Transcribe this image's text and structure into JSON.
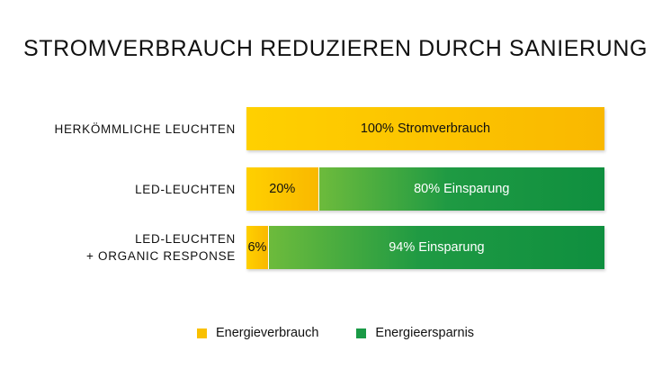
{
  "chart_data": {
    "type": "bar",
    "orientation": "horizontal",
    "stacked": true,
    "title": "STROMVERBRAUCH REDUZIEREN DURCH SANIERUNG",
    "categories": [
      [
        "HERKÖMMLICHE LEUCHTEN"
      ],
      [
        "LED-LEUCHTEN"
      ],
      [
        "LED-LEUCHTEN",
        "+ ORGANIC RESPONSE"
      ]
    ],
    "series": [
      {
        "name": "Energieverbrauch",
        "color": "#f9c000",
        "values": [
          100,
          20,
          6
        ],
        "labels": [
          "100% Stromverbrauch",
          "20%",
          "6%"
        ]
      },
      {
        "name": "Energieersparnis",
        "color": "#1a9a46",
        "values": [
          0,
          80,
          94
        ],
        "labels": [
          "",
          "80% Einsparung",
          "94% Einsparung"
        ]
      }
    ],
    "xlim": [
      0,
      100
    ],
    "grid": false,
    "legend_position": "bottom"
  }
}
